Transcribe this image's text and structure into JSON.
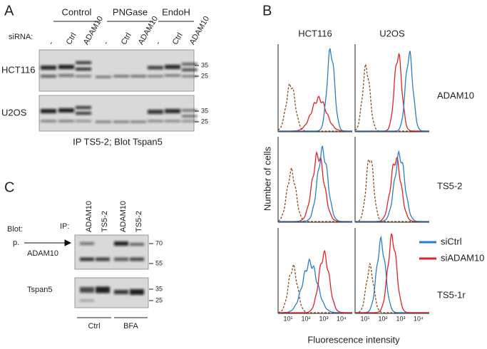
{
  "panel_a": {
    "label": "A",
    "groups": [
      "Control",
      "PNGase",
      "EndoH"
    ],
    "sirna_label": "siRNA:",
    "lanes": [
      "-",
      "Ctrl",
      "ADAM10",
      "-",
      "Ctrl",
      "ADAM10",
      "-",
      "Ctrl",
      "ADAM10"
    ],
    "blots": [
      {
        "cell_line": "HCT116",
        "markers": [
          "35",
          "25"
        ]
      },
      {
        "cell_line": "U2OS",
        "markers": [
          "35",
          "25"
        ]
      }
    ],
    "caption": "IP TS5-2; Blot Tspan5"
  },
  "panel_b": {
    "label": "B",
    "columns": [
      "HCT116",
      "U2OS"
    ],
    "rows": [
      "ADAM10",
      "TS5-2",
      "TS5-1r"
    ],
    "y_label": "Number of cells",
    "x_label": "Fluorescence intensity",
    "x_ticks": [
      "10¹",
      "10²",
      "10³",
      "10⁴"
    ],
    "legend": [
      "siCtrl",
      "siADAM10"
    ]
  },
  "panel_c": {
    "label": "C",
    "blot_label": "Blot:",
    "ip_label": "IP:",
    "lanes": [
      "ADAM10",
      "TS5-2",
      "ADAM10",
      "TS5-2"
    ],
    "arrow_label": "p.",
    "blots": [
      {
        "name": "ADAM10",
        "markers": [
          "70",
          "55"
        ]
      },
      {
        "name": "Tspan5",
        "markers": [
          "35",
          "25"
        ]
      }
    ],
    "conditions": [
      "Ctrl",
      "BFA"
    ]
  }
}
